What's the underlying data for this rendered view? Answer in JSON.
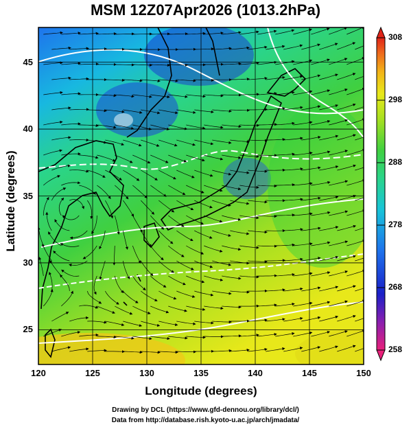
{
  "title": "MSM 12Z07Apr2026 (1013.2hPa)",
  "map": {
    "xlabel": "Longitude (degrees)",
    "ylabel": "Latitude  (degrees)",
    "x_ticks": [
      "120",
      "125",
      "130",
      "135",
      "140",
      "145",
      "150"
    ],
    "y_ticks": [
      "25",
      "30",
      "35",
      "40",
      "45"
    ],
    "lon_range": [
      120,
      150
    ],
    "lat_range": [
      22.4,
      47.6
    ],
    "field": "temperature (K) with wind streamlines",
    "contour_color": "#ffffff",
    "coast_color": "#000000",
    "grid": true
  },
  "colorbar": {
    "ticks": [
      "308",
      "298",
      "288",
      "278",
      "268",
      "258"
    ],
    "range": [
      258,
      308
    ],
    "colors": [
      "#e8207a",
      "#8a1fb0",
      "#1a20c8",
      "#1e74ec",
      "#18c4d8",
      "#2ad48a",
      "#40d040",
      "#a8e020",
      "#e8e81a",
      "#f2b418",
      "#ee6a1c",
      "#e02418"
    ]
  },
  "credits": {
    "line1": "Drawing by DCL (https://www.gfd-dennou.org/library/dcl/)",
    "line2": "Data from http://database.rish.kyoto-u.ac.jp/arch/jmadata/"
  }
}
